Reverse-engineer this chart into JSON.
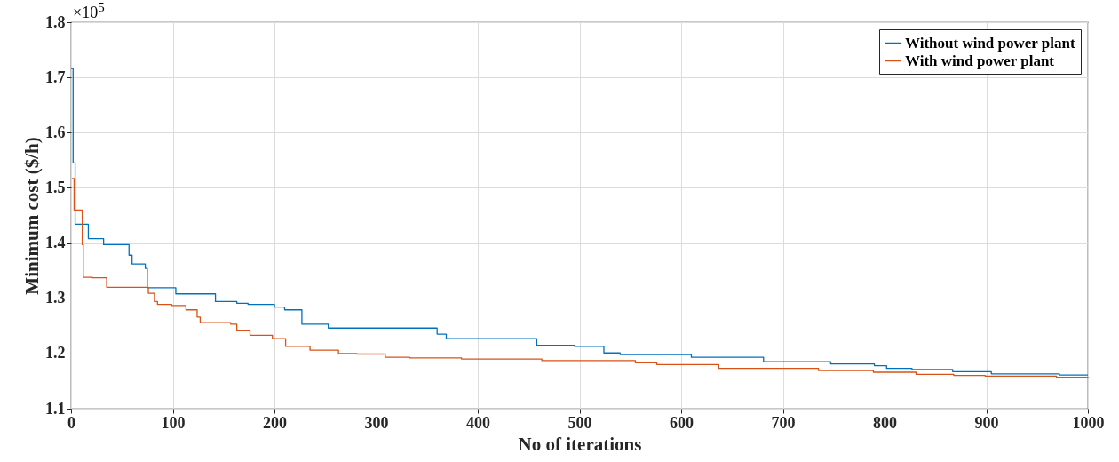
{
  "chart_data": {
    "type": "step",
    "xlabel": "No of iterations",
    "ylabel": "Minimum cost ($/h)",
    "annotations": [
      "×10$^{5}$"
    ],
    "xlim": [
      0,
      1000
    ],
    "xticks": [
      0,
      100,
      200,
      300,
      400,
      500,
      600,
      700,
      800,
      900,
      1000
    ],
    "ylim": [
      1.1,
      1.8
    ],
    "yticks": [
      1.1,
      1.2,
      1.3,
      1.4,
      1.5,
      1.6,
      1.7,
      1.8
    ],
    "grid": true,
    "legend": "top right",
    "line_style": "solid",
    "marker": "none",
    "series": [
      {
        "name": "Without wind power plant",
        "color": "#0072bd",
        "x": [
          0,
          2,
          4,
          17,
          32,
          57,
          60,
          73,
          75,
          103,
          142,
          163,
          174,
          200,
          210,
          227,
          253,
          360,
          369,
          458,
          495,
          524,
          540,
          610,
          681,
          747,
          790,
          802,
          827,
          867,
          905,
          972,
          1000
        ],
        "values": [
          1.716,
          1.545,
          1.434,
          1.408,
          1.397,
          1.378,
          1.362,
          1.354,
          1.319,
          1.308,
          1.294,
          1.291,
          1.289,
          1.284,
          1.279,
          1.253,
          1.246,
          1.235,
          1.227,
          1.215,
          1.213,
          1.201,
          1.198,
          1.193,
          1.185,
          1.181,
          1.178,
          1.173,
          1.171,
          1.167,
          1.163,
          1.161,
          1.161
        ]
      },
      {
        "name": "With wind power plant",
        "color": "#d95319",
        "x": [
          1,
          3,
          11,
          12,
          21,
          35,
          76,
          82,
          85,
          99,
          113,
          124,
          127,
          157,
          163,
          176,
          198,
          211,
          235,
          263,
          281,
          309,
          333,
          384,
          463,
          555,
          576,
          637,
          735,
          789,
          831,
          868,
          899,
          969,
          1000
        ],
        "values": [
          1.517,
          1.46,
          1.397,
          1.338,
          1.337,
          1.32,
          1.309,
          1.294,
          1.289,
          1.287,
          1.279,
          1.266,
          1.256,
          1.253,
          1.242,
          1.233,
          1.227,
          1.213,
          1.206,
          1.2,
          1.199,
          1.193,
          1.192,
          1.19,
          1.187,
          1.183,
          1.18,
          1.173,
          1.169,
          1.166,
          1.162,
          1.16,
          1.159,
          1.157,
          1.156
        ]
      }
    ]
  }
}
